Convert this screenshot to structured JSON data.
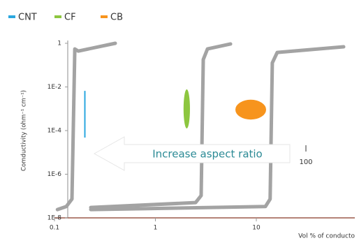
{
  "chart_data": {
    "type": "line",
    "xlabel": "Vol % of conducto",
    "ylabel": "Comductivity (ohm⁻¹ cm⁻¹)",
    "xscale": "log",
    "yscale": "log",
    "xlim": [
      0.1,
      100
    ],
    "ylim": [
      1e-08,
      1
    ],
    "xticks": [
      0.1,
      1,
      10
    ],
    "yticks": [
      {
        "value": 1e-08,
        "label": "1E-8"
      },
      {
        "value": 1e-06,
        "label": "1E-6"
      },
      {
        "value": 0.0001,
        "label": "1E-4"
      },
      {
        "value": 0.01,
        "label": "1E-2"
      },
      1
    ],
    "grid": false,
    "curve_color": "#a3a3a3",
    "curves": [
      {
        "x": [
          0.107,
          0.131,
          0.149,
          0.159,
          0.172,
          0.4
        ],
        "y": [
          2.4e-08,
          3.3e-08,
          7.3e-08,
          0.55,
          0.44,
          1
        ]
      },
      {
        "x": [
          0.229,
          2.5,
          2.84,
          2.98,
          3.28,
          5.55
        ],
        "y": [
          3e-08,
          5e-08,
          1.05e-07,
          0.18,
          0.55,
          0.93
        ]
      },
      {
        "x": [
          0.229,
          12.3,
          13.7,
          14.4,
          16.1,
          73.3
        ],
        "y": [
          2.4e-08,
          3.3e-08,
          7.3e-08,
          0.127,
          0.38,
          0.69
        ]
      }
    ],
    "series": [
      {
        "name": "CNT",
        "color": "#2aa7df",
        "shape": "line",
        "x": [
          0.2,
          0.2
        ],
        "y": [
          4.8e-05,
          0.0066
        ]
      },
      {
        "name": "CF",
        "color": "#8dc63f",
        "shape": "ellipse",
        "x": [
          1.9,
          2.2
        ],
        "y": [
          0.000126,
          0.0077
        ]
      },
      {
        "name": "CB",
        "color": "#f7941d",
        "shape": "ellipse",
        "x": [
          6.2,
          12.5
        ],
        "y": [
          0.00032,
          0.0026
        ]
      }
    ],
    "legend": "top-left",
    "annotations": [
      "Increase aspect ratio",
      "100"
    ]
  }
}
